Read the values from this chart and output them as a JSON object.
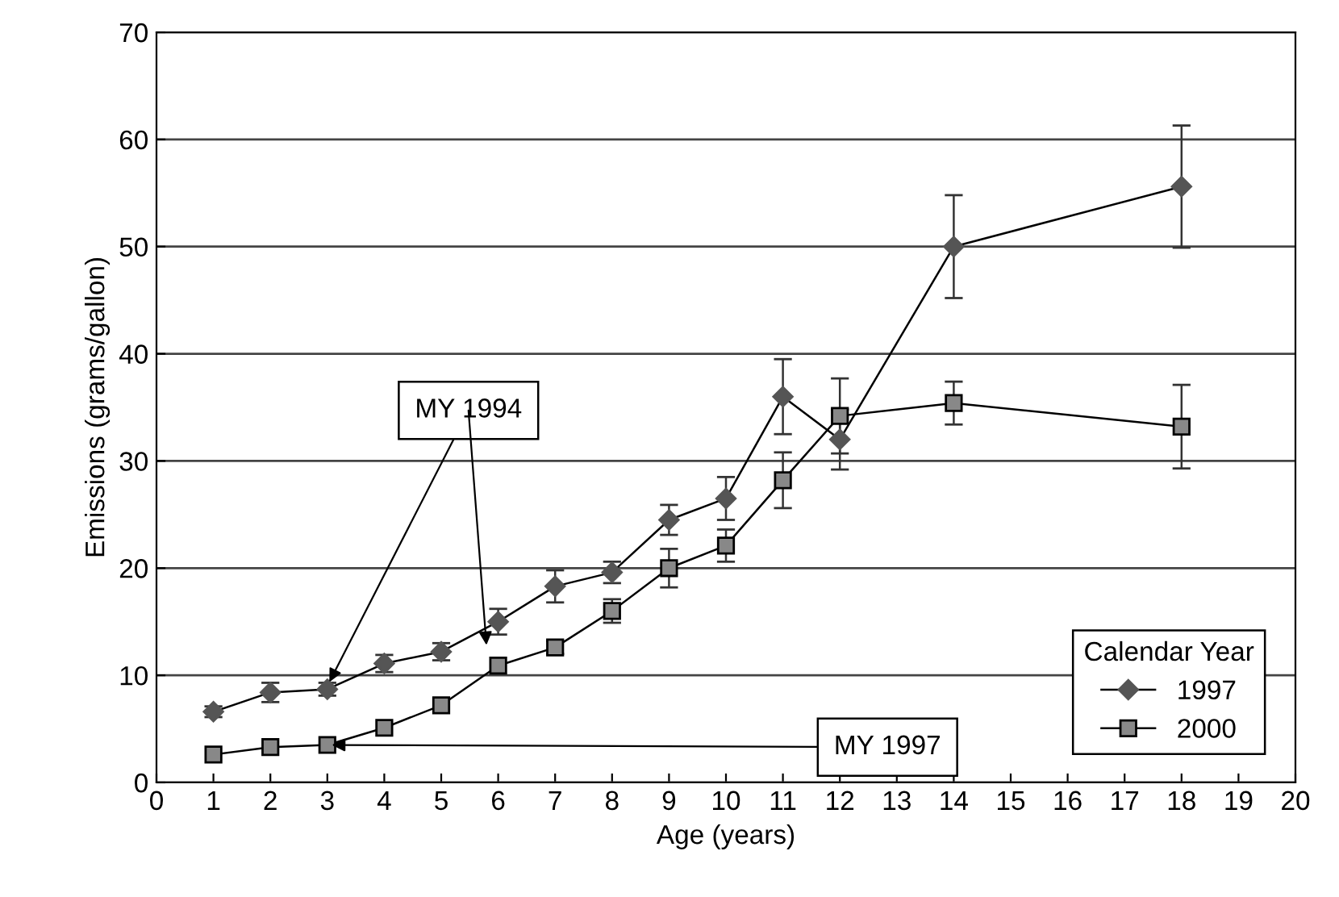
{
  "chart_data": {
    "type": "line",
    "xlabel": "Age (years)",
    "ylabel": "Emissions (grams/gallon)",
    "legend_title": "Calendar Year",
    "xlim": [
      0,
      20
    ],
    "xticks": [
      0,
      1,
      2,
      3,
      4,
      5,
      6,
      7,
      8,
      9,
      10,
      11,
      12,
      13,
      14,
      15,
      16,
      17,
      18,
      19,
      20
    ],
    "ylim": [
      0,
      70
    ],
    "yticks": [
      0,
      10,
      20,
      30,
      40,
      50,
      60,
      70
    ],
    "grid": "y",
    "legend": "bottom right",
    "x": [
      1,
      2,
      3,
      4,
      5,
      6,
      7,
      8,
      9,
      10,
      11,
      12,
      14,
      18
    ],
    "series": [
      {
        "name": "1997",
        "color": "#555555",
        "marker": "diamond",
        "values": [
          6.6,
          8.4,
          8.7,
          11.1,
          12.2,
          15.0,
          18.3,
          19.6,
          24.5,
          26.5,
          36.0,
          32.0,
          50.0,
          55.6
        ],
        "errors": [
          0.5,
          0.9,
          0.6,
          0.8,
          0.8,
          1.2,
          1.5,
          1.0,
          1.4,
          2.0,
          3.5,
          2.8,
          4.8,
          5.7
        ]
      },
      {
        "name": "2000",
        "color": "#888888",
        "marker": "square",
        "values": [
          2.6,
          3.3,
          3.5,
          5.1,
          7.2,
          10.9,
          12.6,
          16.0,
          20.0,
          22.1,
          28.2,
          34.2,
          35.4,
          33.2
        ],
        "errors": [
          null,
          null,
          null,
          null,
          null,
          null,
          0.6,
          1.1,
          1.8,
          1.5,
          2.6,
          3.5,
          2.0,
          3.9
        ]
      }
    ],
    "annotations": [
      {
        "text": "MY 1994",
        "x": 3,
        "y": 9.0
      },
      {
        "text": "MY 1997",
        "x": 3,
        "y": 3.5
      }
    ]
  }
}
